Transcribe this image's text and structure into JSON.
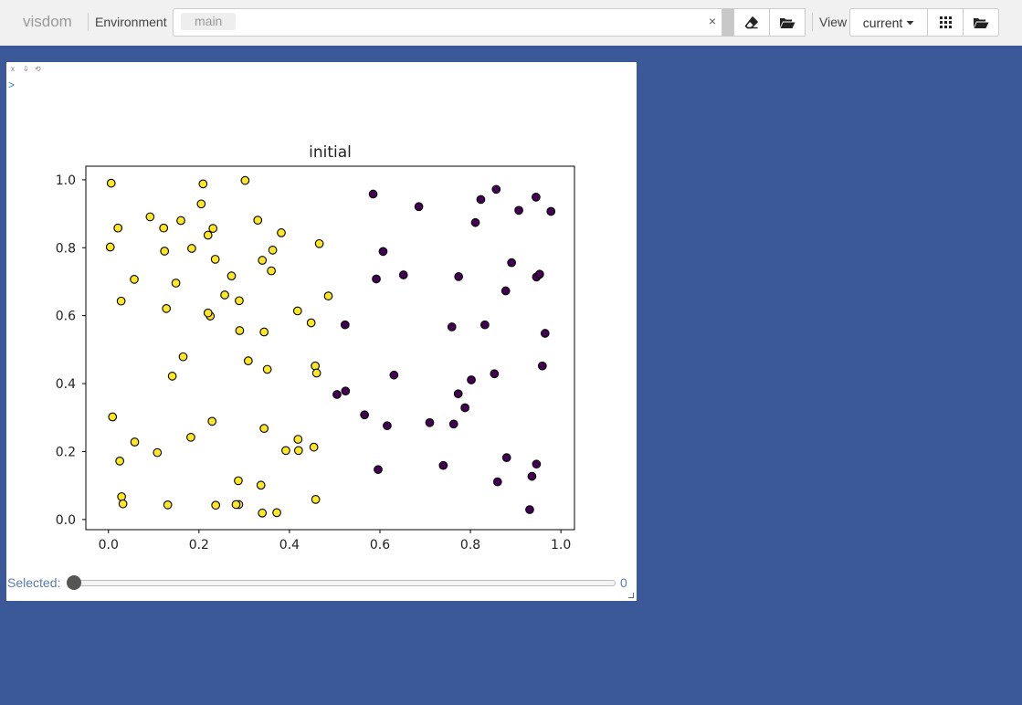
{
  "navbar": {
    "brand": "visdom",
    "environment_label": "Environment",
    "environment_tag": "main",
    "clear_symbol": "×",
    "view_label": "View",
    "view_value": "current"
  },
  "icons": {
    "eraser": "eraser-icon",
    "folder": "folder-open-icon",
    "grid": "grid-icon",
    "caret": "caret-down-icon"
  },
  "pane": {
    "controls": [
      "x",
      "⇩",
      "⟲"
    ],
    "arrow": ">",
    "slider_label": "Selected:",
    "slider_value": "0",
    "slider_fraction": 0
  },
  "colors": {
    "background": "#3b5998",
    "class_0": "#440154",
    "class_1": "#fde725",
    "marker_edge": "#000000"
  },
  "chart_data": {
    "type": "scatter",
    "title": "initial",
    "xlabel": "",
    "ylabel": "",
    "xlim": [
      -0.05,
      1.03
    ],
    "ylim": [
      -0.03,
      1.04
    ],
    "xticks": [
      "0.0",
      "0.2",
      "0.4",
      "0.6",
      "0.8",
      "1.0"
    ],
    "yticks": [
      "0.0",
      "0.2",
      "0.4",
      "0.6",
      "0.8",
      "1.0"
    ],
    "grid": false,
    "series": [
      {
        "color": "#fde725",
        "x": [
          0.006,
          0.004,
          0.021,
          0.028,
          0.057,
          0.009,
          0.058,
          0.025,
          0.029,
          0.032,
          0.092,
          0.122,
          0.124,
          0.16,
          0.149,
          0.128,
          0.165,
          0.141,
          0.108,
          0.131,
          0.184,
          0.209,
          0.205,
          0.22,
          0.231,
          0.236,
          0.225,
          0.182,
          0.229,
          0.22,
          0.257,
          0.272,
          0.302,
          0.289,
          0.29,
          0.287,
          0.33,
          0.363,
          0.34,
          0.36,
          0.382,
          0.344,
          0.309,
          0.351,
          0.344,
          0.337,
          0.34,
          0.372,
          0.392,
          0.419,
          0.42,
          0.418,
          0.448,
          0.466,
          0.457,
          0.486,
          0.46,
          0.454,
          0.458,
          0.288,
          0.237,
          0.282
        ],
        "y": [
          0.99,
          0.802,
          0.858,
          0.643,
          0.707,
          0.302,
          0.228,
          0.172,
          0.067,
          0.046,
          0.891,
          0.858,
          0.79,
          0.88,
          0.696,
          0.621,
          0.479,
          0.422,
          0.197,
          0.043,
          0.798,
          0.988,
          0.929,
          0.837,
          0.857,
          0.766,
          0.599,
          0.242,
          0.289,
          0.608,
          0.661,
          0.717,
          0.998,
          0.644,
          0.556,
          0.114,
          0.881,
          0.793,
          0.763,
          0.732,
          0.844,
          0.552,
          0.467,
          0.442,
          0.268,
          0.101,
          0.019,
          0.02,
          0.203,
          0.236,
          0.203,
          0.614,
          0.579,
          0.812,
          0.452,
          0.658,
          0.431,
          0.213,
          0.059,
          0.044,
          0.042,
          0.044
        ]
      },
      {
        "color": "#440154",
        "x": [
          0.585,
          0.686,
          0.607,
          0.592,
          0.652,
          0.774,
          0.823,
          0.857,
          0.811,
          0.907,
          0.945,
          0.978,
          0.891,
          0.878,
          0.946,
          0.953,
          0.523,
          0.759,
          0.832,
          0.965,
          0.631,
          0.853,
          0.802,
          0.773,
          0.788,
          0.959,
          0.524,
          0.505,
          0.566,
          0.616,
          0.71,
          0.763,
          0.596,
          0.74,
          0.88,
          0.946,
          0.86,
          0.936,
          0.931
        ],
        "y": [
          0.958,
          0.921,
          0.789,
          0.708,
          0.72,
          0.715,
          0.942,
          0.972,
          0.874,
          0.91,
          0.949,
          0.907,
          0.756,
          0.673,
          0.714,
          0.722,
          0.573,
          0.567,
          0.573,
          0.548,
          0.425,
          0.429,
          0.411,
          0.37,
          0.329,
          0.452,
          0.378,
          0.368,
          0.308,
          0.276,
          0.285,
          0.281,
          0.147,
          0.159,
          0.182,
          0.163,
          0.111,
          0.127,
          0.029
        ]
      }
    ]
  }
}
